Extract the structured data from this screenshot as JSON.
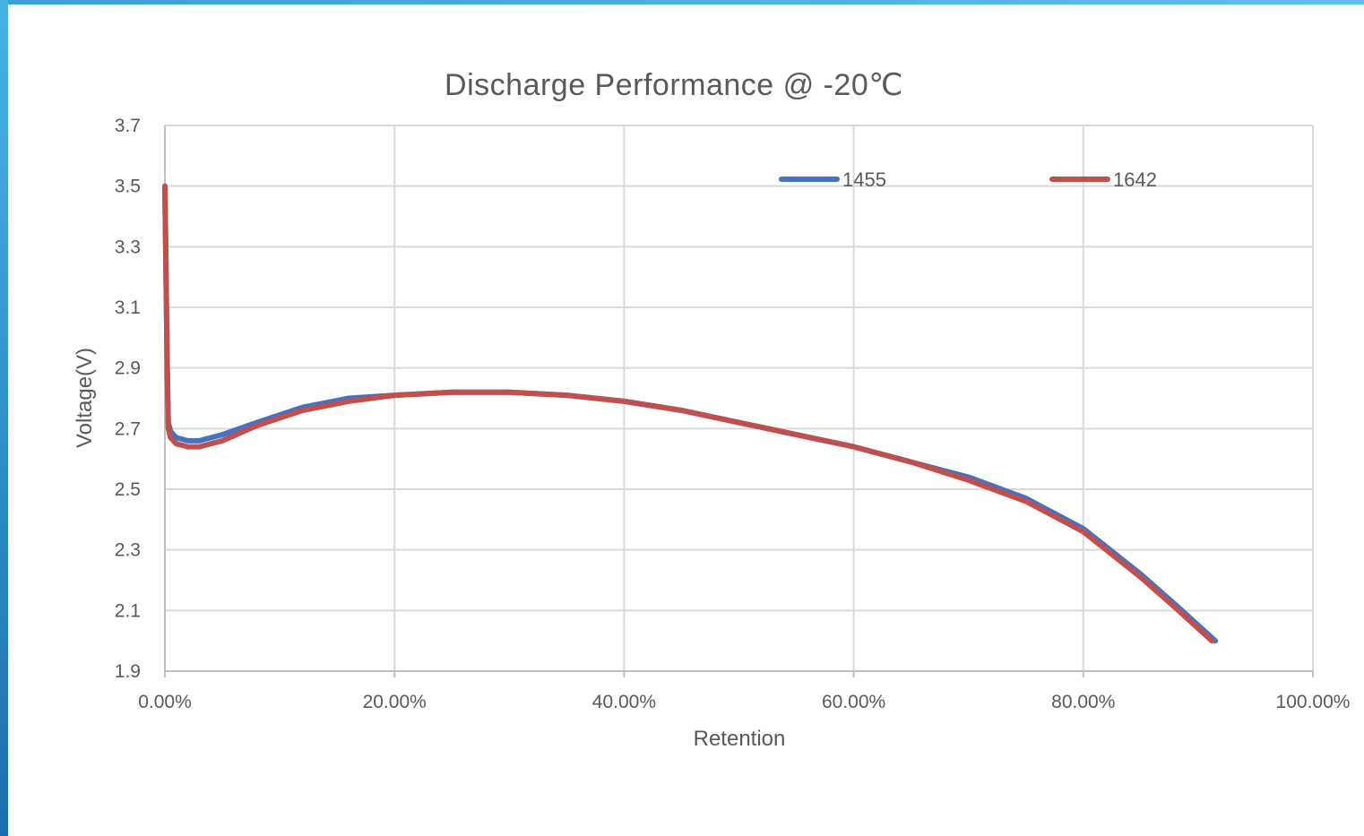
{
  "chart_data": {
    "type": "line",
    "title": "Discharge Performance  @ -20℃",
    "xlabel": "Retention",
    "ylabel": "Voltage(V)",
    "xlim": [
      0,
      100
    ],
    "ylim": [
      1.9,
      3.7
    ],
    "x_ticks": [
      "0.00%",
      "20.00%",
      "40.00%",
      "60.00%",
      "80.00%",
      "100.00%"
    ],
    "y_ticks": [
      "1.9",
      "2.1",
      "2.3",
      "2.5",
      "2.7",
      "2.9",
      "3.1",
      "3.3",
      "3.5",
      "3.7"
    ],
    "grid": true,
    "legend_position": "top-right",
    "series": [
      {
        "name": "1455",
        "color": "#4472C4",
        "x": [
          0,
          0.1,
          0.2,
          0.3,
          0.5,
          1,
          2,
          3,
          5,
          8,
          12,
          16,
          20,
          25,
          30,
          35,
          40,
          45,
          50,
          55,
          60,
          65,
          70,
          75,
          80,
          85,
          88,
          91.5
        ],
        "y": [
          3.5,
          3.2,
          2.9,
          2.72,
          2.69,
          2.67,
          2.66,
          2.66,
          2.68,
          2.72,
          2.77,
          2.8,
          2.81,
          2.82,
          2.82,
          2.81,
          2.79,
          2.76,
          2.72,
          2.68,
          2.64,
          2.59,
          2.54,
          2.47,
          2.37,
          2.22,
          2.12,
          2.0
        ]
      },
      {
        "name": "1642",
        "color": "#C0504D",
        "x": [
          0,
          0.1,
          0.2,
          0.3,
          0.5,
          1,
          2,
          3,
          5,
          8,
          12,
          16,
          20,
          25,
          30,
          35,
          40,
          45,
          50,
          55,
          60,
          65,
          70,
          75,
          80,
          85,
          88,
          91.2
        ],
        "y": [
          3.5,
          3.2,
          2.9,
          2.7,
          2.67,
          2.65,
          2.64,
          2.64,
          2.66,
          2.71,
          2.76,
          2.79,
          2.81,
          2.82,
          2.82,
          2.81,
          2.79,
          2.76,
          2.72,
          2.68,
          2.64,
          2.59,
          2.53,
          2.46,
          2.36,
          2.21,
          2.11,
          2.0
        ]
      }
    ]
  }
}
